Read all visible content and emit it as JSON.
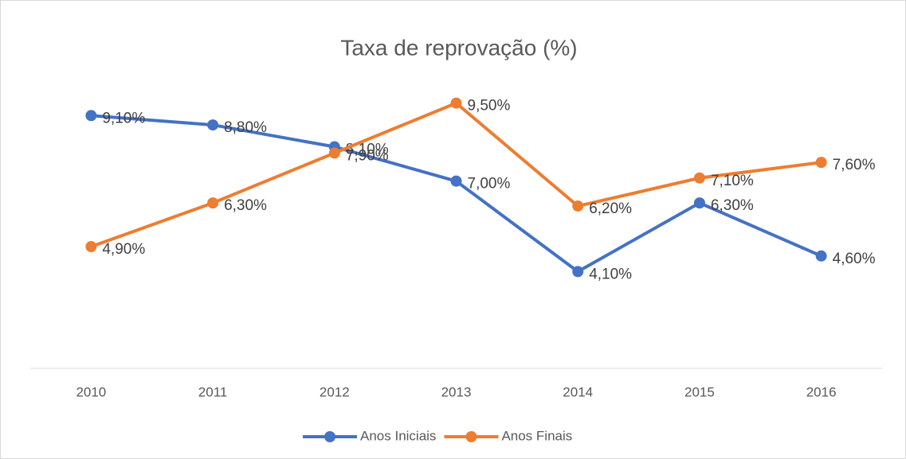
{
  "chart_data": {
    "type": "line",
    "title": "Taxa de reprovação (%)",
    "categories": [
      "2010",
      "2011",
      "2012",
      "2013",
      "2014",
      "2015",
      "2016"
    ],
    "series": [
      {
        "name": "Anos Iniciais",
        "color": "#4472c4",
        "values": [
          9.1,
          8.8,
          8.1,
          7.0,
          4.1,
          6.3,
          4.6
        ],
        "value_labels": [
          "9,10%",
          "8,80%",
          "8,10%",
          "7,00%",
          "4,10%",
          "6,30%",
          "4,60%"
        ]
      },
      {
        "name": "Anos Finais",
        "color": "#ed7d31",
        "values": [
          4.9,
          6.3,
          7.9,
          9.5,
          6.2,
          7.1,
          7.6
        ],
        "value_labels": [
          "4,90%",
          "6,30%",
          "7,90%",
          "9,50%",
          "6,20%",
          "7,10%",
          "7,60%"
        ]
      }
    ],
    "ylim": [
      1,
      10
    ],
    "legend": "bottom"
  }
}
